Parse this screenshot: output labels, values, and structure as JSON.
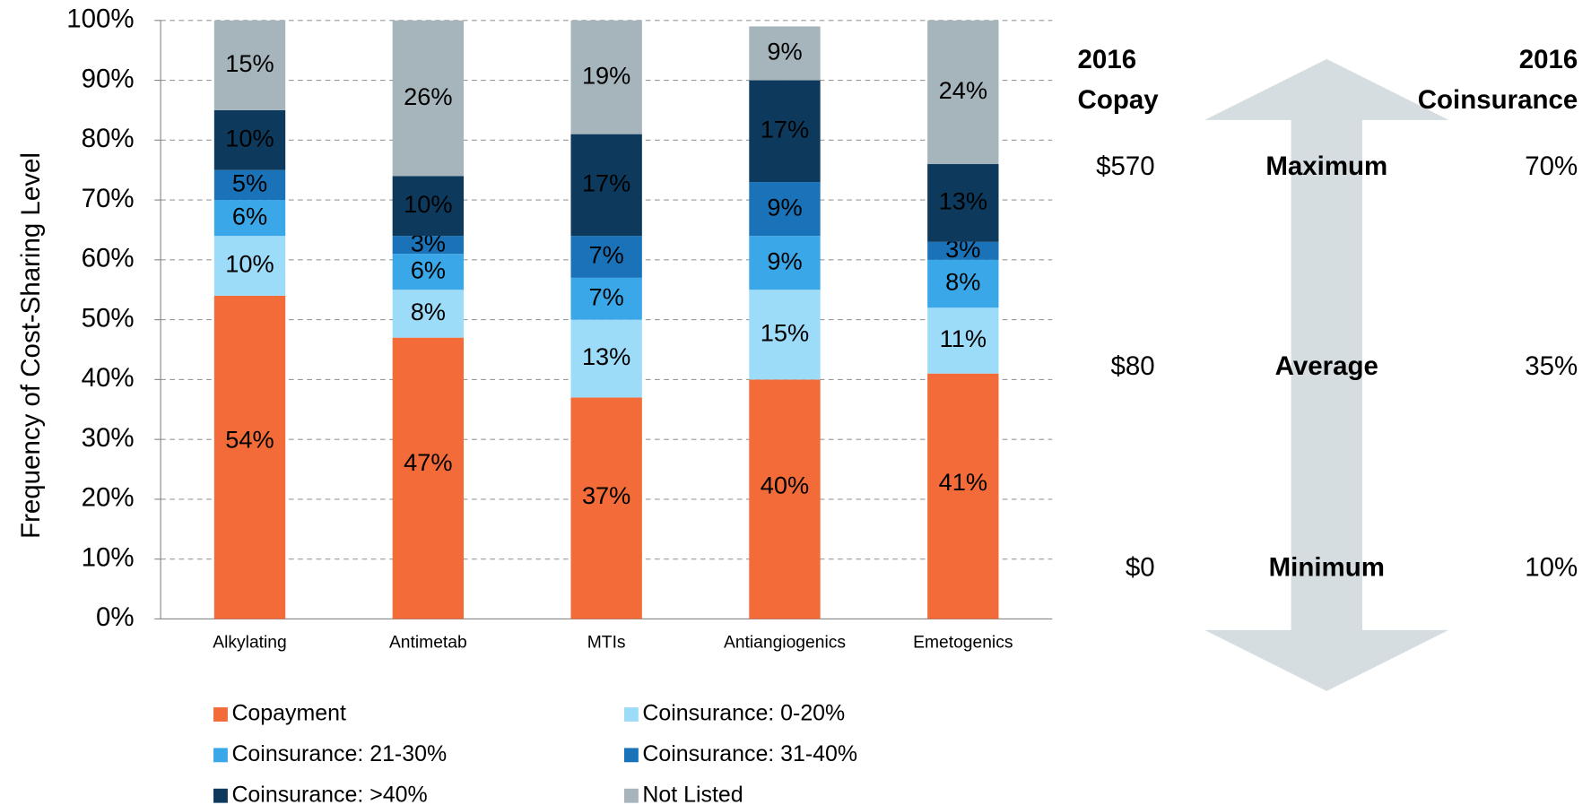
{
  "chart_data": {
    "type": "stacked_bar",
    "y_axis_label": "Frequency of Cost-Sharing Level",
    "categories": [
      "Alkylating",
      "Antimetab",
      "MTIs",
      "Antiangiogenics",
      "Emetogenics"
    ],
    "series": [
      {
        "name": "Copayment",
        "color": "#f26b38",
        "label_color": "#ffffff",
        "values": [
          54,
          47,
          37,
          40,
          41
        ],
        "value_labels": [
          "54%",
          "47%",
          "37%",
          "40%",
          "41%"
        ]
      },
      {
        "name": "Coinsurance: 0-20%",
        "color": "#9ddcf9",
        "label_color": "#1a1a1a",
        "values": [
          10,
          8,
          13,
          15,
          11
        ],
        "value_labels": [
          "10%",
          "8%",
          "13%",
          "15%",
          "11%"
        ]
      },
      {
        "name": "Coinsurance:  21-30%",
        "color": "#3aa8e8",
        "label_color": "#ffffff",
        "values": [
          6,
          6,
          7,
          9,
          8
        ],
        "value_labels": [
          "6%",
          "6%",
          "7%",
          "9%",
          "8%"
        ]
      },
      {
        "name": "Coinsurance: 31-40%",
        "color": "#1a73b8",
        "label_color": "#ffffff",
        "values": [
          5,
          3,
          7,
          9,
          3
        ],
        "value_labels": [
          "5%",
          "3%",
          "7%",
          "9%",
          "3%"
        ]
      },
      {
        "name": "Coinsurance: >40%",
        "color": "#0d3a5c",
        "label_color": "#ffffff",
        "values": [
          10,
          10,
          17,
          17,
          13
        ],
        "value_labels": [
          "10%",
          "10%",
          "17%",
          "17%",
          "13%"
        ]
      },
      {
        "name": "Not Listed",
        "color": "#a6b4bc",
        "label_color": "#ffffff",
        "values": [
          15,
          26,
          19,
          9,
          24
        ],
        "value_labels": [
          "15%",
          "26%",
          "19%",
          "9%",
          "24%"
        ]
      }
    ],
    "ylim": [
      0,
      100
    ],
    "yticks": [
      {
        "value": 0,
        "label": "0%"
      },
      {
        "value": 10,
        "label": "10%"
      },
      {
        "value": 20,
        "label": "20%"
      },
      {
        "value": 30,
        "label": "30%"
      },
      {
        "value": 40,
        "label": "40%"
      },
      {
        "value": 50,
        "label": "50%"
      },
      {
        "value": 60,
        "label": "60%"
      },
      {
        "value": 70,
        "label": "70%"
      },
      {
        "value": 80,
        "label": "80%"
      },
      {
        "value": 90,
        "label": "90%"
      },
      {
        "value": 100,
        "label": "100%"
      }
    ],
    "grid": true
  },
  "side_panel": {
    "copay_header": [
      "2016",
      "Copay"
    ],
    "coinsurance_header": [
      "2016",
      "Coinsurance"
    ],
    "rows": [
      {
        "copay": "$570",
        "level": "Maximum",
        "coinsurance": "70%"
      },
      {
        "copay": "$80",
        "level": "Average",
        "coinsurance": "35%"
      },
      {
        "copay": "$0",
        "level": "Minimum",
        "coinsurance": "10%"
      }
    ]
  }
}
